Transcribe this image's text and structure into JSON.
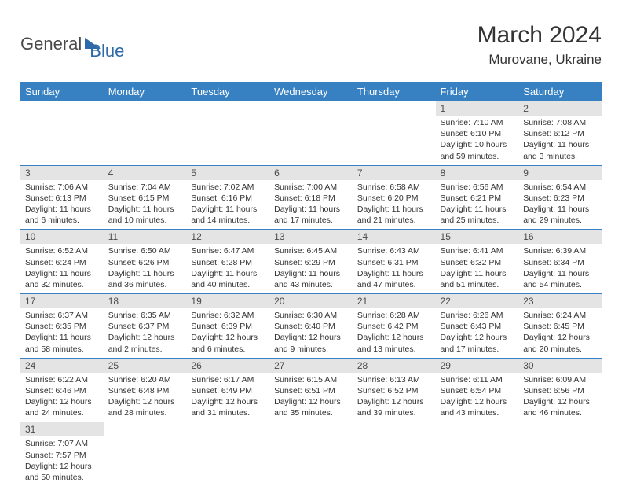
{
  "logo": {
    "text1": "General",
    "text2": "Blue"
  },
  "title": "March 2024",
  "location": "Murovane, Ukraine",
  "colors": {
    "header_bg": "#3781c2",
    "header_fg": "#ffffff",
    "daynum_bg": "#e4e4e4",
    "border": "#3781c2",
    "text": "#333333"
  },
  "weekdays": [
    "Sunday",
    "Monday",
    "Tuesday",
    "Wednesday",
    "Thursday",
    "Friday",
    "Saturday"
  ],
  "weeks": [
    [
      null,
      null,
      null,
      null,
      null,
      {
        "n": "1",
        "sr": "Sunrise: 7:10 AM",
        "ss": "Sunset: 6:10 PM",
        "dl": "Daylight: 10 hours and 59 minutes."
      },
      {
        "n": "2",
        "sr": "Sunrise: 7:08 AM",
        "ss": "Sunset: 6:12 PM",
        "dl": "Daylight: 11 hours and 3 minutes."
      }
    ],
    [
      {
        "n": "3",
        "sr": "Sunrise: 7:06 AM",
        "ss": "Sunset: 6:13 PM",
        "dl": "Daylight: 11 hours and 6 minutes."
      },
      {
        "n": "4",
        "sr": "Sunrise: 7:04 AM",
        "ss": "Sunset: 6:15 PM",
        "dl": "Daylight: 11 hours and 10 minutes."
      },
      {
        "n": "5",
        "sr": "Sunrise: 7:02 AM",
        "ss": "Sunset: 6:16 PM",
        "dl": "Daylight: 11 hours and 14 minutes."
      },
      {
        "n": "6",
        "sr": "Sunrise: 7:00 AM",
        "ss": "Sunset: 6:18 PM",
        "dl": "Daylight: 11 hours and 17 minutes."
      },
      {
        "n": "7",
        "sr": "Sunrise: 6:58 AM",
        "ss": "Sunset: 6:20 PM",
        "dl": "Daylight: 11 hours and 21 minutes."
      },
      {
        "n": "8",
        "sr": "Sunrise: 6:56 AM",
        "ss": "Sunset: 6:21 PM",
        "dl": "Daylight: 11 hours and 25 minutes."
      },
      {
        "n": "9",
        "sr": "Sunrise: 6:54 AM",
        "ss": "Sunset: 6:23 PM",
        "dl": "Daylight: 11 hours and 29 minutes."
      }
    ],
    [
      {
        "n": "10",
        "sr": "Sunrise: 6:52 AM",
        "ss": "Sunset: 6:24 PM",
        "dl": "Daylight: 11 hours and 32 minutes."
      },
      {
        "n": "11",
        "sr": "Sunrise: 6:50 AM",
        "ss": "Sunset: 6:26 PM",
        "dl": "Daylight: 11 hours and 36 minutes."
      },
      {
        "n": "12",
        "sr": "Sunrise: 6:47 AM",
        "ss": "Sunset: 6:28 PM",
        "dl": "Daylight: 11 hours and 40 minutes."
      },
      {
        "n": "13",
        "sr": "Sunrise: 6:45 AM",
        "ss": "Sunset: 6:29 PM",
        "dl": "Daylight: 11 hours and 43 minutes."
      },
      {
        "n": "14",
        "sr": "Sunrise: 6:43 AM",
        "ss": "Sunset: 6:31 PM",
        "dl": "Daylight: 11 hours and 47 minutes."
      },
      {
        "n": "15",
        "sr": "Sunrise: 6:41 AM",
        "ss": "Sunset: 6:32 PM",
        "dl": "Daylight: 11 hours and 51 minutes."
      },
      {
        "n": "16",
        "sr": "Sunrise: 6:39 AM",
        "ss": "Sunset: 6:34 PM",
        "dl": "Daylight: 11 hours and 54 minutes."
      }
    ],
    [
      {
        "n": "17",
        "sr": "Sunrise: 6:37 AM",
        "ss": "Sunset: 6:35 PM",
        "dl": "Daylight: 11 hours and 58 minutes."
      },
      {
        "n": "18",
        "sr": "Sunrise: 6:35 AM",
        "ss": "Sunset: 6:37 PM",
        "dl": "Daylight: 12 hours and 2 minutes."
      },
      {
        "n": "19",
        "sr": "Sunrise: 6:32 AM",
        "ss": "Sunset: 6:39 PM",
        "dl": "Daylight: 12 hours and 6 minutes."
      },
      {
        "n": "20",
        "sr": "Sunrise: 6:30 AM",
        "ss": "Sunset: 6:40 PM",
        "dl": "Daylight: 12 hours and 9 minutes."
      },
      {
        "n": "21",
        "sr": "Sunrise: 6:28 AM",
        "ss": "Sunset: 6:42 PM",
        "dl": "Daylight: 12 hours and 13 minutes."
      },
      {
        "n": "22",
        "sr": "Sunrise: 6:26 AM",
        "ss": "Sunset: 6:43 PM",
        "dl": "Daylight: 12 hours and 17 minutes."
      },
      {
        "n": "23",
        "sr": "Sunrise: 6:24 AM",
        "ss": "Sunset: 6:45 PM",
        "dl": "Daylight: 12 hours and 20 minutes."
      }
    ],
    [
      {
        "n": "24",
        "sr": "Sunrise: 6:22 AM",
        "ss": "Sunset: 6:46 PM",
        "dl": "Daylight: 12 hours and 24 minutes."
      },
      {
        "n": "25",
        "sr": "Sunrise: 6:20 AM",
        "ss": "Sunset: 6:48 PM",
        "dl": "Daylight: 12 hours and 28 minutes."
      },
      {
        "n": "26",
        "sr": "Sunrise: 6:17 AM",
        "ss": "Sunset: 6:49 PM",
        "dl": "Daylight: 12 hours and 31 minutes."
      },
      {
        "n": "27",
        "sr": "Sunrise: 6:15 AM",
        "ss": "Sunset: 6:51 PM",
        "dl": "Daylight: 12 hours and 35 minutes."
      },
      {
        "n": "28",
        "sr": "Sunrise: 6:13 AM",
        "ss": "Sunset: 6:52 PM",
        "dl": "Daylight: 12 hours and 39 minutes."
      },
      {
        "n": "29",
        "sr": "Sunrise: 6:11 AM",
        "ss": "Sunset: 6:54 PM",
        "dl": "Daylight: 12 hours and 43 minutes."
      },
      {
        "n": "30",
        "sr": "Sunrise: 6:09 AM",
        "ss": "Sunset: 6:56 PM",
        "dl": "Daylight: 12 hours and 46 minutes."
      }
    ],
    [
      {
        "n": "31",
        "sr": "Sunrise: 7:07 AM",
        "ss": "Sunset: 7:57 PM",
        "dl": "Daylight: 12 hours and 50 minutes."
      },
      null,
      null,
      null,
      null,
      null,
      null
    ]
  ]
}
